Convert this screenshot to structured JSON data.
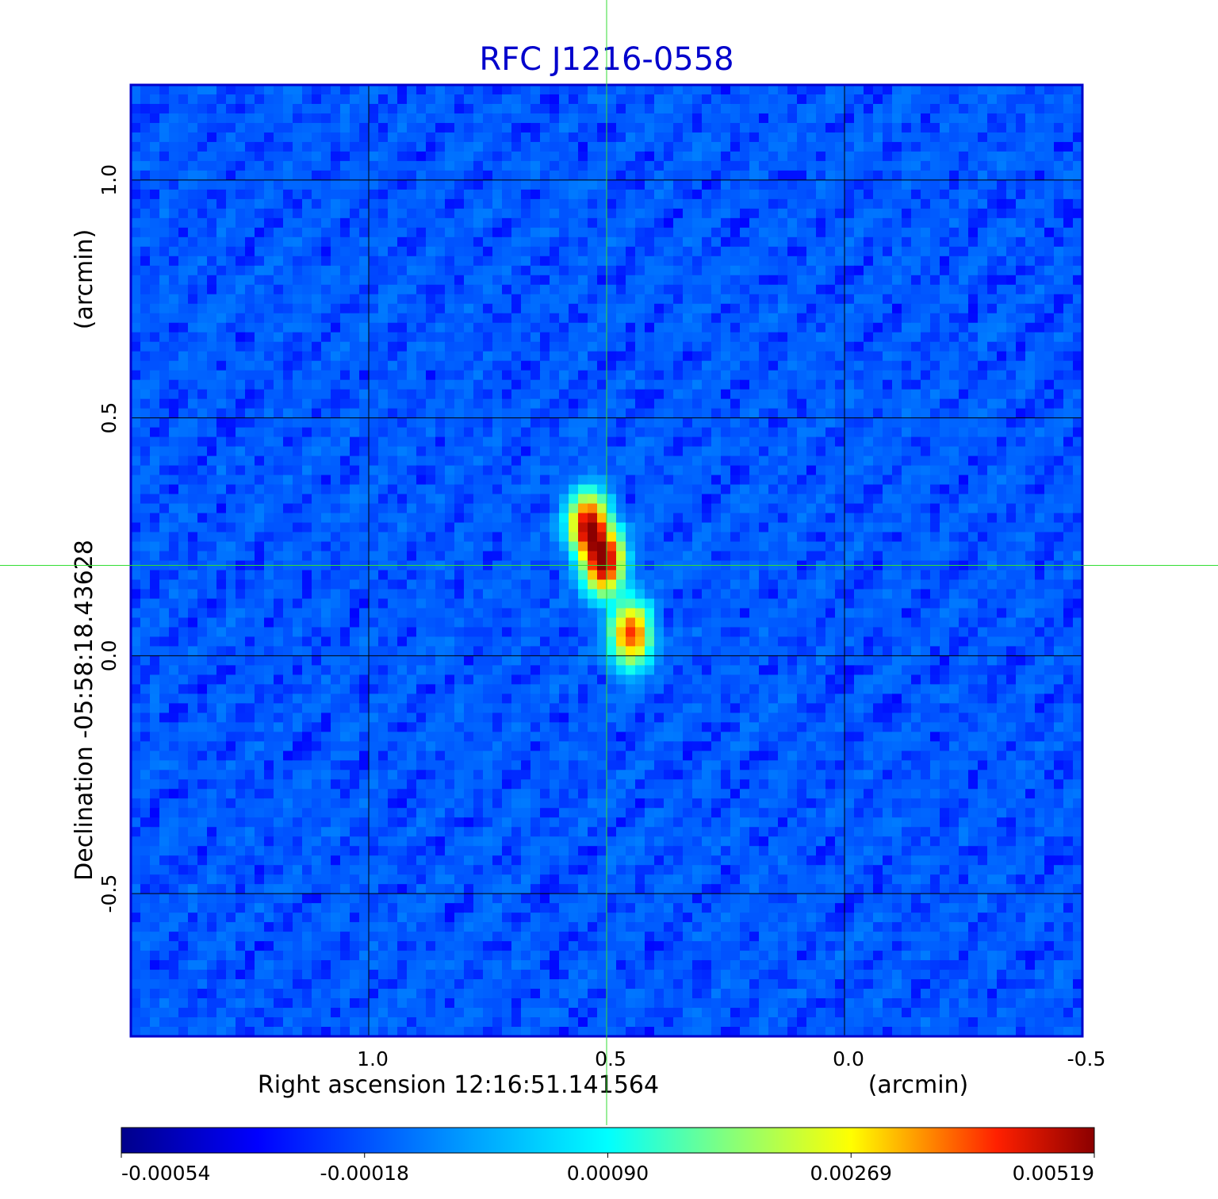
{
  "chart_data": {
    "type": "heatmap",
    "title": "RFC J1216-0558",
    "xlabel": "Right ascension  12:16:51.141564",
    "xunit": "(arcmin)",
    "ylabel": "Declination  -05:58:18.43628",
    "yunit": "(arcmin)",
    "xlim": [
      1.5,
      -0.5
    ],
    "ylim": [
      -0.8,
      1.2
    ],
    "x_ticks": [
      {
        "value": 1.0,
        "label": "1.0"
      },
      {
        "value": 0.5,
        "label": "0.5"
      },
      {
        "value": 0.0,
        "label": "0.0"
      },
      {
        "value": -0.5,
        "label": "-0.5"
      }
    ],
    "y_ticks": [
      {
        "value": 1.0,
        "label": "1.0"
      },
      {
        "value": 0.5,
        "label": "0.5"
      },
      {
        "value": 0.0,
        "label": "0.0"
      },
      {
        "value": -0.5,
        "label": "-0.5"
      }
    ],
    "grid": true,
    "grid_color": "#000000",
    "crosshair": {
      "x": 0.5,
      "y": 0.19,
      "color": "#33dd33"
    },
    "frame_color": "#0000cc",
    "background_value": -0.00012,
    "noise_amplitude": 0.00018,
    "components": [
      {
        "x": 0.538,
        "y": 0.275,
        "peak": 0.0049
      },
      {
        "x": 0.505,
        "y": 0.195,
        "peak": 0.005
      },
      {
        "x": 0.448,
        "y": 0.045,
        "peak": 0.0042
      }
    ],
    "colorbar": {
      "min": -0.00054,
      "max": 0.00519,
      "tick_labels": [
        "-0.00054",
        "-0.00018",
        "0.00090",
        "0.00269",
        "0.00519"
      ],
      "colors": [
        "#00008b",
        "#0000ff",
        "#00ffff",
        "#ffff00",
        "#ff0000",
        "#8b0000"
      ]
    }
  }
}
